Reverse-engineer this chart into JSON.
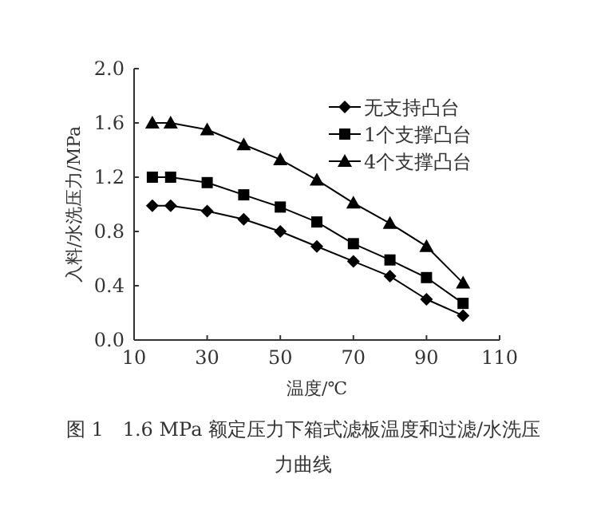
{
  "chart_data": {
    "type": "line",
    "xlabel": "温度/℃",
    "ylabel": "入料/水洗压力/MPa",
    "annotations": [
      "图 1　1.6 MPa 额定压力下箱式滤板温度和过滤/水洗压力曲线"
    ],
    "x": [
      15,
      20,
      30,
      40,
      50,
      60,
      70,
      80,
      90,
      100
    ],
    "series": [
      {
        "name": "无支持凸台",
        "color": "#000000",
        "marker": "diamond",
        "values": [
          0.99,
          0.99,
          0.95,
          0.89,
          0.8,
          0.69,
          0.58,
          0.47,
          0.3,
          0.18
        ]
      },
      {
        "name": "1个支撑凸台",
        "color": "#000000",
        "marker": "square",
        "values": [
          1.2,
          1.2,
          1.16,
          1.07,
          0.98,
          0.87,
          0.71,
          0.59,
          0.46,
          0.27
        ]
      },
      {
        "name": "4个支撑凸台",
        "color": "#000000",
        "marker": "triangle",
        "values": [
          1.6,
          1.6,
          1.55,
          1.44,
          1.33,
          1.18,
          1.01,
          0.86,
          0.69,
          0.42
        ]
      }
    ],
    "xlim": [
      10,
      110
    ],
    "xticks": [
      10,
      30,
      50,
      70,
      90,
      110
    ],
    "ylim": [
      0,
      2
    ],
    "yticks": [
      {
        "value": 0,
        "label": "0.0"
      },
      0.4,
      0.8,
      1.2,
      1.6,
      {
        "value": 2,
        "label": "2.0"
      }
    ],
    "legend": "top right",
    "line_style": "solid"
  }
}
